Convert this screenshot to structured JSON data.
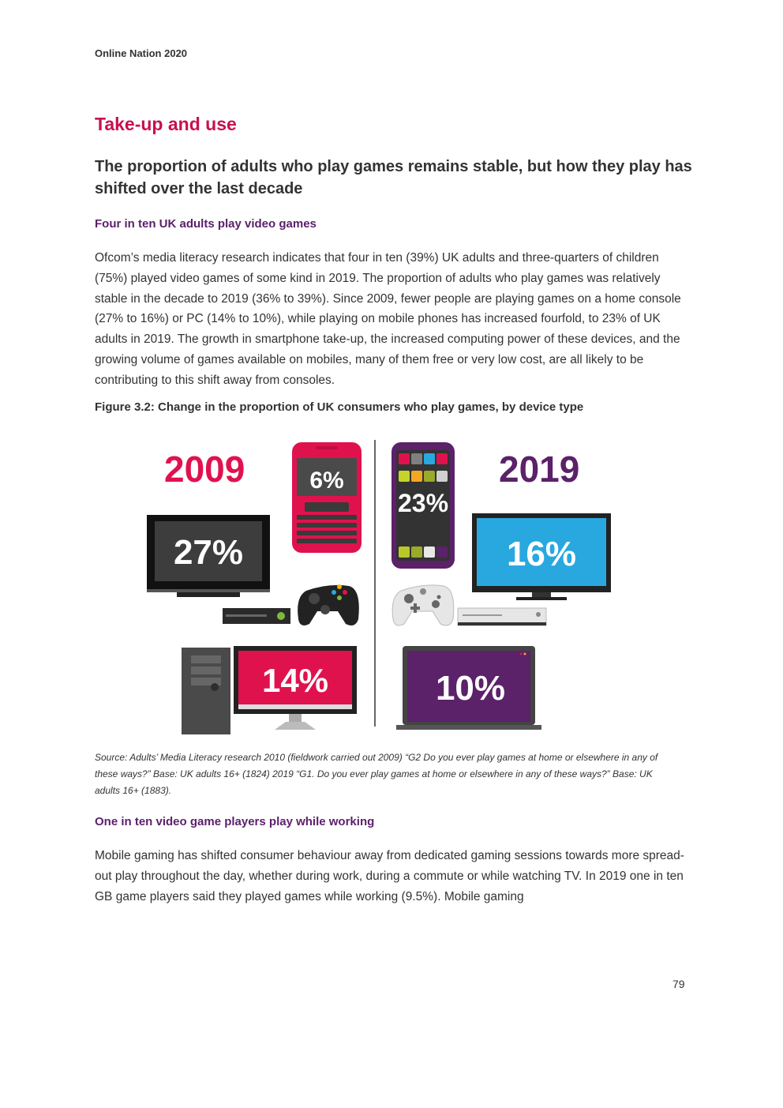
{
  "header": {
    "running_title": "Online Nation 2020"
  },
  "section": {
    "title": "Take-up and use",
    "subtitle": "The proportion of adults who play games remains stable, but how they play has shifted over the last decade",
    "subheading_1": "Four in ten UK adults play video games",
    "paragraph_1": "Ofcom’s media literacy research indicates that four in ten (39%) UK adults and three-quarters of children (75%) played video games of some kind in 2019. The proportion of adults who play games was relatively stable in the decade to 2019 (36% to 39%). Since 2009, fewer people are playing games on a home console (27% to 16%) or PC (14% to 10%), while playing on mobile phones has increased fourfold, to 23% of UK adults in 2019. The growth in smartphone take-up, the increased computing power of these devices, and the growing volume of games available on mobiles, many of them free or very low cost, are all likely to be contributing to this shift away from consoles.",
    "subheading_2": "One in ten video game players play while working",
    "paragraph_2": "Mobile gaming has shifted consumer behaviour away from dedicated gaming sessions towards more spread-out play throughout the day, whether during work, during a commute or while watching TV. In 2019 one in ten GB game players said they played games while working (9.5%). Mobile gaming"
  },
  "figure": {
    "caption": "Figure 3.2: Change in the proportion of UK consumers who play games, by device type",
    "source": "Source: Adults’ Media Literacy research 2010 (fieldwork carried out 2009) “G2 Do you ever play games at home or elsewhere in any of these ways?” Base: UK adults 16+ (1824) 2019 “G1. Do you ever play games at home or elsewhere in any of these ways?” Base: UK adults 16+ (1883).",
    "year_left": "2009",
    "year_right": "2019",
    "mobile_2009": "6%",
    "console_2009": "27%",
    "pc_2009": "14%",
    "mobile_2019": "23%",
    "console_2019": "16%",
    "pc_2019": "10%",
    "colors": {
      "pink": "#e0124e",
      "purple": "#5b2169",
      "blue": "#29a8e0",
      "dark": "#222222"
    }
  },
  "footer": {
    "page_number": "79"
  }
}
